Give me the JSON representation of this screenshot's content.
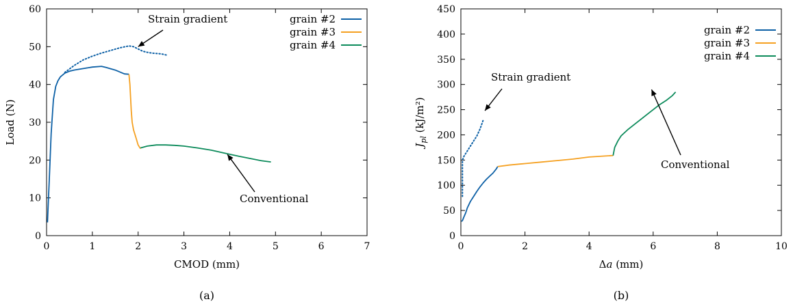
{
  "chart_data": [
    {
      "panel": "a",
      "caption": "(a)",
      "type": "line",
      "xlabel": "CMOD (mm)",
      "ylabel": "Load (N)",
      "xlim": [
        0,
        7
      ],
      "ylim": [
        0,
        60
      ],
      "xticks": [
        "0",
        "1",
        "2",
        "3",
        "4",
        "5",
        "6",
        "7"
      ],
      "yticks": [
        "0",
        "10",
        "20",
        "30",
        "40",
        "50",
        "60"
      ],
      "legend_position": "top-right",
      "legend": [
        {
          "label": "grain #2",
          "color": "#0b5fa5"
        },
        {
          "label": "grain #3",
          "color": "#f5a020"
        },
        {
          "label": "grain #4",
          "color": "#0b8a5a"
        }
      ],
      "series": [
        {
          "name": "grain #2",
          "color": "#0b5fa5",
          "style": "solid",
          "x": [
            0.02,
            0.06,
            0.1,
            0.15,
            0.2,
            0.25,
            0.3,
            0.35,
            0.4,
            0.5,
            0.6,
            0.8,
            1.0,
            1.2,
            1.3,
            1.5,
            1.7,
            1.8
          ],
          "y": [
            3.5,
            15,
            27,
            36,
            39.5,
            41,
            42,
            42.5,
            43,
            43.5,
            43.8,
            44.2,
            44.6,
            44.8,
            44.5,
            43.8,
            42.8,
            42.7
          ]
        },
        {
          "name": "grain #3",
          "color": "#f5a020",
          "style": "solid",
          "x": [
            1.8,
            1.82,
            1.85,
            1.87,
            1.9,
            1.95,
            2.0,
            2.05
          ],
          "y": [
            42.7,
            40,
            33,
            30,
            28,
            26,
            24,
            23
          ]
        },
        {
          "name": "grain #4",
          "color": "#0b8a5a",
          "style": "solid",
          "x": [
            2.05,
            2.2,
            2.4,
            2.6,
            2.8,
            3.0,
            3.3,
            3.6,
            3.9,
            4.2,
            4.5,
            4.7,
            4.9
          ],
          "y": [
            23.2,
            23.7,
            24.0,
            24.0,
            23.9,
            23.7,
            23.2,
            22.6,
            21.8,
            21.0,
            20.3,
            19.8,
            19.5
          ]
        },
        {
          "name": "",
          "color": "#0b5fa5",
          "style": "dotted",
          "x": [
            0.4,
            0.6,
            0.8,
            1.0,
            1.2,
            1.4,
            1.6,
            1.8,
            1.9,
            2.0,
            2.1,
            2.2,
            2.3,
            2.5,
            2.65
          ],
          "y": [
            43.2,
            45,
            46.5,
            47.5,
            48.3,
            49,
            49.7,
            50.2,
            50.0,
            49.4,
            48.8,
            48.5,
            48.3,
            48.1,
            47.7
          ]
        }
      ],
      "annotations": [
        {
          "text": "Strain gradient",
          "arrow_to": [
            2.0,
            50
          ]
        },
        {
          "text": "Conventional",
          "arrow_to": [
            3.95,
            21.5
          ]
        }
      ]
    },
    {
      "panel": "b",
      "caption": "(b)",
      "type": "line",
      "xlabel": "Δa (mm)",
      "ylabel": "J_pl (kJ/m²)",
      "xlim": [
        0,
        10
      ],
      "ylim": [
        0,
        450
      ],
      "xticks": [
        "0",
        "2",
        "4",
        "6",
        "8",
        "10"
      ],
      "yticks": [
        "0",
        "50",
        "100",
        "150",
        "200",
        "250",
        "300",
        "350",
        "400",
        "450"
      ],
      "legend_position": "top-right",
      "legend": [
        {
          "label": "grain #2",
          "color": "#0b5fa5"
        },
        {
          "label": "grain #3",
          "color": "#f5a020"
        },
        {
          "label": "grain #4",
          "color": "#0b8a5a"
        }
      ],
      "series": [
        {
          "name": "grain #2",
          "color": "#0b5fa5",
          "style": "solid",
          "x": [
            0.02,
            0.05,
            0.1,
            0.15,
            0.2,
            0.3,
            0.4,
            0.5,
            0.6,
            0.7,
            0.8,
            0.9,
            1.0,
            1.1,
            1.15
          ],
          "y": [
            28,
            30,
            38,
            45,
            55,
            68,
            78,
            88,
            97,
            105,
            112,
            118,
            124,
            132,
            137
          ]
        },
        {
          "name": "grain #3",
          "color": "#f5a020",
          "style": "solid",
          "x": [
            1.15,
            1.5,
            2.0,
            2.5,
            3.0,
            3.5,
            4.0,
            4.5,
            4.75
          ],
          "y": [
            137,
            140,
            143,
            146,
            149,
            152,
            156,
            158,
            159
          ]
        },
        {
          "name": "grain #4",
          "color": "#0b8a5a",
          "style": "solid",
          "x": [
            4.75,
            4.8,
            4.9,
            5.0,
            5.2,
            5.4,
            5.6,
            5.8,
            6.0,
            6.2,
            6.4,
            6.6,
            6.7
          ],
          "y": [
            159,
            175,
            188,
            198,
            210,
            220,
            230,
            240,
            250,
            260,
            268,
            278,
            285
          ]
        },
        {
          "name": "",
          "color": "#0b5fa5",
          "style": "dotted",
          "x": [
            0.05,
            0.05,
            0.1,
            0.2,
            0.3,
            0.4,
            0.5,
            0.6,
            0.7
          ],
          "y": [
            78,
            150,
            158,
            168,
            178,
            188,
            198,
            212,
            230
          ]
        }
      ],
      "annotations": [
        {
          "text": "Strain gradient",
          "arrow_to": [
            0.75,
            248
          ]
        },
        {
          "text": "Conventional",
          "arrow_to": [
            5.95,
            290
          ]
        }
      ]
    }
  ]
}
